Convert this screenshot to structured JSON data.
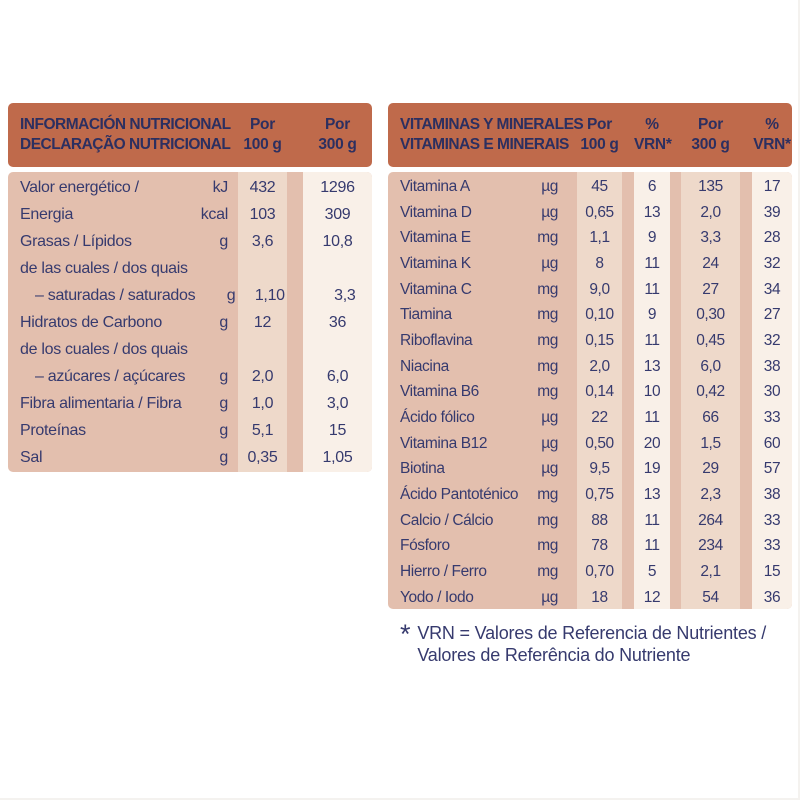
{
  "colors": {
    "header_bg": "#bf6a4b",
    "header_text": "#2c2f60",
    "body_text": "#363a6e",
    "row_bg": "#e3bfae",
    "stripe_tan": "#eed9ca",
    "stripe_cream": "#f9f0e8"
  },
  "left_table": {
    "header": {
      "title_line1": "INFORMACIÓN NUTRICIONAL",
      "title_line2": "DECLARAÇÃO NUTRICIONAL",
      "col1_line1": "Por",
      "col1_line2": "100 g",
      "col2_line1": "Por",
      "col2_line2": "300 g"
    },
    "rows": [
      {
        "label": "Valor energético /",
        "unit": "kJ",
        "per100": "432",
        "per300": "1296"
      },
      {
        "label": "Energia",
        "unit": "kcal",
        "per100": "103",
        "per300": "309"
      },
      {
        "label": "Grasas / Lípidos",
        "unit": "g",
        "per100": "3,6",
        "per300": "10,8"
      },
      {
        "label": "de las cuales / dos quais",
        "unit": "",
        "per100": "",
        "per300": ""
      },
      {
        "label": "– saturadas / saturados",
        "unit": "g",
        "per100": "1,10",
        "per300": "3,3",
        "indent": true
      },
      {
        "label": "Hidratos de Carbono",
        "unit": "g",
        "per100": "12",
        "per300": "36"
      },
      {
        "label": "de los cuales / dos quais",
        "unit": "",
        "per100": "",
        "per300": ""
      },
      {
        "label": "– azúcares / açúcares",
        "unit": "g",
        "per100": "2,0",
        "per300": "6,0",
        "indent": true
      },
      {
        "label": "Fibra alimentaria / Fibra",
        "unit": "g",
        "per100": "1,0",
        "per300": "3,0"
      },
      {
        "label": "Proteínas",
        "unit": "g",
        "per100": "5,1",
        "per300": "15"
      },
      {
        "label": "Sal",
        "unit": "g",
        "per100": "0,35",
        "per300": "1,05"
      }
    ]
  },
  "right_table": {
    "header": {
      "title_line1": "VITAMINAS Y MINERALES",
      "title_line2": "VITAMINAS E MINERAIS",
      "col1_line1": "Por",
      "col1_line2": "100 g",
      "col2_line1": "%",
      "col2_line2": "VRN*",
      "col3_line1": "Por",
      "col3_line2": "300 g",
      "col4_line1": "%",
      "col4_line2": "VRN*"
    },
    "rows": [
      {
        "label": "Vitamina A",
        "unit": "µg",
        "per100": "45",
        "vrn100": "6",
        "per300": "135",
        "vrn300": "17"
      },
      {
        "label": "Vitamina D",
        "unit": "µg",
        "per100": "0,65",
        "vrn100": "13",
        "per300": "2,0",
        "vrn300": "39"
      },
      {
        "label": "Vitamina E",
        "unit": "mg",
        "per100": "1,1",
        "vrn100": "9",
        "per300": "3,3",
        "vrn300": "28"
      },
      {
        "label": "Vitamina K",
        "unit": "µg",
        "per100": "8",
        "vrn100": "11",
        "per300": "24",
        "vrn300": "32"
      },
      {
        "label": "Vitamina C",
        "unit": "mg",
        "per100": "9,0",
        "vrn100": "11",
        "per300": "27",
        "vrn300": "34"
      },
      {
        "label": "Tiamina",
        "unit": "mg",
        "per100": "0,10",
        "vrn100": "9",
        "per300": "0,30",
        "vrn300": "27"
      },
      {
        "label": "Riboflavina",
        "unit": "mg",
        "per100": "0,15",
        "vrn100": "11",
        "per300": "0,45",
        "vrn300": "32"
      },
      {
        "label": "Niacina",
        "unit": "mg",
        "per100": "2,0",
        "vrn100": "13",
        "per300": "6,0",
        "vrn300": "38"
      },
      {
        "label": "Vitamina B6",
        "unit": "mg",
        "per100": "0,14",
        "vrn100": "10",
        "per300": "0,42",
        "vrn300": "30"
      },
      {
        "label": "Ácido fólico",
        "unit": "µg",
        "per100": "22",
        "vrn100": "11",
        "per300": "66",
        "vrn300": "33"
      },
      {
        "label": "Vitamina B12",
        "unit": "µg",
        "per100": "0,50",
        "vrn100": "20",
        "per300": "1,5",
        "vrn300": "60"
      },
      {
        "label": "Biotina",
        "unit": "µg",
        "per100": "9,5",
        "vrn100": "19",
        "per300": "29",
        "vrn300": "57"
      },
      {
        "label": "Ácido Pantoténico",
        "unit": "mg",
        "per100": "0,75",
        "vrn100": "13",
        "per300": "2,3",
        "vrn300": "38"
      },
      {
        "label": "Calcio / Cálcio",
        "unit": "mg",
        "per100": "88",
        "vrn100": "11",
        "per300": "264",
        "vrn300": "33"
      },
      {
        "label": "Fósforo",
        "unit": "mg",
        "per100": "78",
        "vrn100": "11",
        "per300": "234",
        "vrn300": "33"
      },
      {
        "label": "Hierro / Ferro",
        "unit": "mg",
        "per100": "0,70",
        "vrn100": "5",
        "per300": "2,1",
        "vrn300": "15"
      },
      {
        "label": "Yodo / Iodo",
        "unit": "µg",
        "per100": "18",
        "vrn100": "12",
        "per300": "54",
        "vrn300": "36"
      }
    ]
  },
  "footnote": {
    "marker": "*",
    "line1": "VRN = Valores de Referencia de Nutrientes /",
    "line2": "Valores de Referência do Nutriente"
  }
}
